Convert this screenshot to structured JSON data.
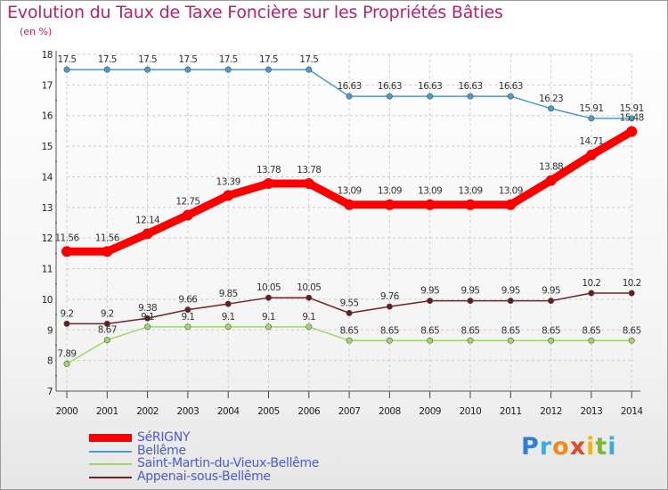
{
  "header": {
    "title": "Evolution du Taux de Taxe Foncière sur les Propriétés Bâties",
    "unit": "(en %)"
  },
  "logo": {
    "text": "Proxiti"
  },
  "colors": {
    "title": "#c01f6a",
    "legend_text": "#4a5bd6",
    "grid": "#cccccc"
  },
  "chart_data": {
    "type": "line",
    "title": "Evolution du Taux de Taxe Foncière sur les Propriétés Bâties",
    "ylabel": "(en %)",
    "xlabel": "",
    "ylim": [
      7,
      18
    ],
    "yticks": [
      7,
      8,
      9,
      10,
      11,
      12,
      13,
      14,
      15,
      16,
      17,
      18
    ],
    "grid": "horizontal dashed",
    "legend_placement": "bottom-left",
    "x": [
      "2000",
      "2001",
      "2002",
      "2003",
      "2004",
      "2005",
      "2006",
      "2007",
      "2008",
      "2009",
      "2010",
      "2011",
      "2012",
      "2013",
      "2014"
    ],
    "series": [
      {
        "name": "SéRIGNY",
        "color": "#ff0000",
        "values": [
          11.56,
          11.56,
          12.14,
          12.75,
          13.39,
          13.78,
          13.78,
          13.09,
          13.09,
          13.09,
          13.09,
          13.09,
          13.88,
          14.71,
          15.48
        ],
        "labels": [
          "11.56",
          "11.56",
          "12.14",
          "12.75",
          "13.39",
          "13.78",
          "13.78",
          "13.09",
          "13.09",
          "13.09",
          "13.09",
          "13.09",
          "13.88",
          "14.71",
          "15.48"
        ]
      },
      {
        "name": "Bellême",
        "color": "#4a9bd0",
        "values": [
          17.5,
          17.5,
          17.5,
          17.5,
          17.5,
          17.5,
          17.5,
          16.63,
          16.63,
          16.63,
          16.63,
          16.63,
          16.23,
          15.91,
          15.91
        ],
        "labels": [
          "17.5",
          "17.5",
          "17.5",
          "17.5",
          "17.5",
          "17.5",
          "17.5",
          "16.63",
          "16.63",
          "16.63",
          "16.63",
          "16.63",
          "16.23",
          "15.91",
          "15.91"
        ]
      },
      {
        "name": "Saint-Martin-du-Vieux-Bellême",
        "color": "#9fd86a",
        "values": [
          7.89,
          8.67,
          9.1,
          9.1,
          9.1,
          9.1,
          9.1,
          8.65,
          8.65,
          8.65,
          8.65,
          8.65,
          8.65,
          8.65,
          8.65
        ],
        "labels": [
          "7.89",
          "8.67",
          "9.1",
          "9.1",
          "9.1",
          "9.1",
          "9.1",
          "8.65",
          "8.65",
          "8.65",
          "8.65",
          "8.65",
          "8.65",
          "8.65",
          "8.65"
        ]
      },
      {
        "name": "Appenai-sous-Bellême",
        "color": "#7a1f25",
        "values": [
          9.2,
          9.2,
          9.38,
          9.66,
          9.85,
          10.05,
          10.05,
          9.55,
          9.76,
          9.95,
          9.95,
          9.95,
          9.95,
          10.2,
          10.2
        ],
        "labels": [
          "9.2",
          "9.2",
          "9.38",
          "9.66",
          "9.85",
          "10.05",
          "10.05",
          "9.55",
          "9.76",
          "9.95",
          "9.95",
          "9.95",
          "9.95",
          "10.2",
          "10.2"
        ]
      }
    ]
  }
}
